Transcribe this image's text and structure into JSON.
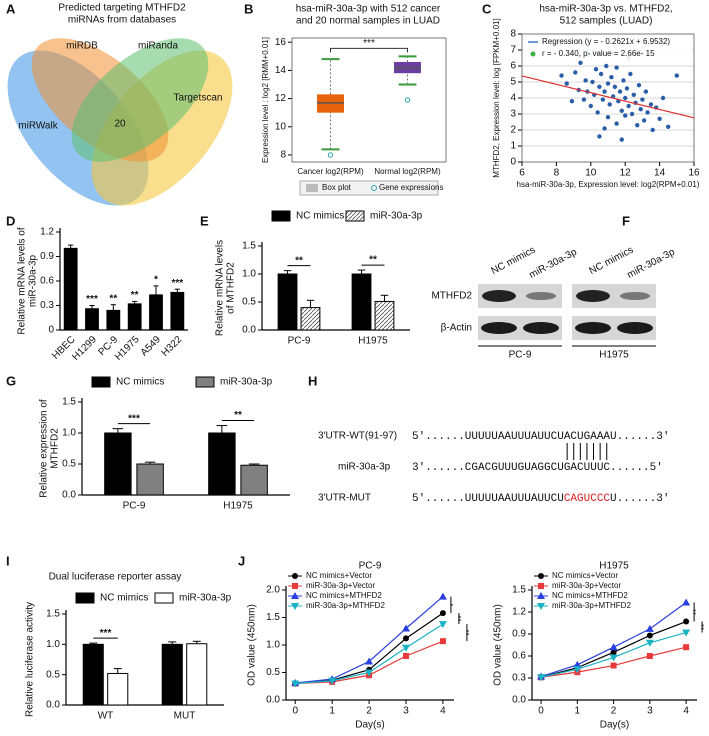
{
  "venn": {
    "panel": "A",
    "title": [
      "Predicted targeting MTHFD2",
      "miRNAs from databases"
    ],
    "sets": [
      "miRDB",
      "miRanda",
      "miRWalk",
      "Targetscan"
    ],
    "center": "20"
  },
  "blot": {
    "panel": "F",
    "lanes": [
      "NC mimics",
      "miR-30a-3p"
    ],
    "proteins": [
      "MTHFD2",
      "β-Actin"
    ],
    "cells": [
      "PC-9",
      "H1975"
    ]
  },
  "sequence": {
    "panel": "H",
    "labels": [
      "3'UTR-WT(91-97)",
      "miR-30a-3p",
      "3'UTR-MUT"
    ],
    "wt": "5'......UUUUUAAUUUAUUCUACUGAAAU......3'",
    "mir": "3'......CGACGUUUGUAGGCUGACUUUC......5'",
    "mut_prefix": "5'......UUUUUAAUUUAUUCU",
    "mut_site": "CAGUCCC",
    "mut_suffix": "U......3'"
  },
  "chart_data": [
    {
      "type": "box",
      "panel": "B",
      "title": [
        "hsa-miR-30a-3p with 512 cancer",
        "and 20 normal samples in LUAD"
      ],
      "ylabel": "Expression level : log2 [RMM+0.01]",
      "categories": [
        "Cancer log2(RPM)",
        "Normal log2(RPM)"
      ],
      "colors": [
        "#e8620c",
        "#6b3fa0"
      ],
      "boxes": [
        {
          "low": 8.4,
          "q1": 11.0,
          "median": 11.7,
          "q3": 12.3,
          "high": 14.8
        },
        {
          "low": 13.0,
          "q1": 13.8,
          "median": 14.2,
          "q3": 14.6,
          "high": 15.0
        }
      ],
      "outliers": [
        8.0,
        11.9
      ],
      "significance": "***",
      "legend": [
        "Box plot",
        "Gene expressions"
      ],
      "ylim": [
        7.5,
        16.3
      ],
      "yticks": [
        8,
        10,
        12,
        14,
        16
      ]
    },
    {
      "type": "scatter",
      "panel": "C",
      "title": [
        "hsa-miR-30a-3p vs. MTHFD2,",
        "512 samples (LUAD)"
      ],
      "xlabel": "hsa-miR-30a-3p, Expression level: log2(RPM+0.01)",
      "ylabel": "MTHFD2, Expression level: log [FPKM+0.01]",
      "color": "#2a5ea8",
      "line_color": "#e03030",
      "x": [
        8.3,
        8.6,
        8.9,
        9.1,
        9.3,
        9.4,
        9.6,
        9.7,
        9.8,
        9.9,
        10.0,
        10.1,
        10.2,
        10.3,
        10.4,
        10.5,
        10.6,
        10.7,
        10.8,
        10.9,
        11.0,
        11.0,
        11.1,
        11.2,
        11.3,
        11.4,
        11.5,
        11.5,
        11.6,
        11.7,
        11.8,
        11.9,
        12.0,
        12.0,
        12.1,
        12.2,
        12.3,
        12.4,
        12.5,
        12.6,
        12.7,
        12.8,
        12.9,
        13.0,
        13.1,
        13.2,
        13.3,
        13.5,
        13.6,
        13.8,
        14.0,
        14.2,
        14.5,
        15.0,
        10.5,
        11.8,
        9.5,
        12.2,
        10.8,
        11.3
      ],
      "y": [
        5.4,
        4.9,
        3.8,
        5.6,
        4.5,
        6.2,
        3.9,
        5.1,
        4.4,
        6.7,
        3.5,
        5.0,
        4.2,
        5.8,
        3.1,
        4.7,
        5.5,
        3.9,
        4.4,
        6.0,
        2.8,
        4.9,
        3.6,
        5.3,
        4.1,
        4.7,
        2.4,
        5.9,
        3.8,
        4.4,
        3.2,
        5.1,
        4.0,
        2.9,
        4.6,
        3.5,
        5.5,
        3.0,
        4.2,
        3.7,
        2.3,
        4.8,
        3.3,
        3.9,
        2.6,
        4.4,
        3.1,
        3.6,
        2.0,
        3.4,
        2.7,
        4.0,
        2.2,
        5.4,
        1.6,
        1.4,
        7.4,
        6.5,
        2.1,
        6.8
      ],
      "regression": {
        "slope": -0.2621,
        "intercept": 6.9532
      },
      "legend": [
        {
          "label": "Regression (y = - 0.2621x + 6.9532)",
          "color": "#3a78c8"
        },
        {
          "label": "r = - 0.340, p- value = 2.66e- 15",
          "color": "#3cb043"
        }
      ],
      "xlim": [
        6,
        16
      ],
      "xticks": [
        6,
        8,
        10,
        12,
        14,
        16
      ],
      "ylim": [
        0,
        8
      ],
      "yticks": [
        0,
        1,
        2,
        3,
        4,
        5,
        6,
        7,
        8
      ],
      "grid": true
    },
    {
      "type": "bar",
      "panel": "D",
      "ylabel": [
        "Relative mRNA levels of",
        "miR-30a-3p"
      ],
      "categories": [
        "HBEC",
        "H1299",
        "PC-9",
        "H1975",
        "A549",
        "H322"
      ],
      "xtick_rotation": -45,
      "values": [
        1.0,
        0.26,
        0.24,
        0.32,
        0.43,
        0.46
      ],
      "errors": [
        0.04,
        0.04,
        0.07,
        0.03,
        0.11,
        0.04
      ],
      "color": "#000000",
      "significance": [
        null,
        "***",
        "**",
        "**",
        "*",
        "***"
      ],
      "ylim": [
        0,
        1.2
      ],
      "yticks": [
        0,
        0.3,
        0.6,
        0.9,
        1.2
      ]
    },
    {
      "type": "bar",
      "panel": "E",
      "ylabel": [
        "Relative mRNA levels",
        "of MTHFD2"
      ],
      "categories": [
        "PC-9",
        "H1975"
      ],
      "series": [
        {
          "name": "NC mimics",
          "color": "#000000",
          "values": [
            1.0,
            1.0
          ],
          "errors": [
            0.06,
            0.07
          ]
        },
        {
          "name": "miR-30a-3p",
          "color": "#999999",
          "pattern": "hatch",
          "values": [
            0.4,
            0.51
          ],
          "errors": [
            0.13,
            0.11
          ]
        }
      ],
      "significance": [
        "**",
        "**"
      ],
      "ylim": [
        0,
        1.5
      ],
      "yticks": [
        {
          "value": 0,
          "label": "0.0"
        },
        0.5,
        {
          "value": 1,
          "label": "1.0"
        },
        1.5
      ]
    },
    {
      "type": "bar",
      "panel": "G",
      "ylabel": [
        "Relative expression of",
        "MTHFD2"
      ],
      "categories": [
        "PC-9",
        "H1975"
      ],
      "series": [
        {
          "name": "NC mimics",
          "color": "#000000",
          "values": [
            1.0,
            1.0
          ],
          "errors": [
            0.07,
            0.12
          ]
        },
        {
          "name": "miR-30a-3p",
          "color": "#808080",
          "values": [
            0.5,
            0.48
          ],
          "errors": [
            0.03,
            0.02
          ]
        }
      ],
      "significance": [
        "***",
        "**"
      ],
      "ylim": [
        0,
        1.5
      ],
      "yticks": [
        {
          "value": 0,
          "label": "0.0"
        },
        0.5,
        {
          "value": 1,
          "label": "1.0"
        },
        1.5
      ]
    },
    {
      "type": "bar",
      "panel": "I",
      "title": "Dual luciferase reporter assay",
      "ylabel": "Relative luciferase activity",
      "categories": [
        "WT",
        "MUT"
      ],
      "series": [
        {
          "name": "NC mimics",
          "color": "#000000",
          "values": [
            1.0,
            1.0
          ],
          "errors": [
            0.02,
            0.04
          ]
        },
        {
          "name": "miR-30a-3p",
          "color": "#ffffff",
          "values": [
            0.52,
            1.01
          ],
          "errors": [
            0.08,
            0.04
          ]
        }
      ],
      "significance": [
        "***",
        null
      ],
      "ylim": [
        0,
        1.5
      ],
      "yticks": [
        {
          "value": 0,
          "label": "0.0"
        },
        0.5,
        {
          "value": 1,
          "label": "1.0"
        },
        1.5
      ]
    },
    {
      "type": "line",
      "panel": "J",
      "title": "PC-9",
      "xlabel": "Day(s)",
      "ylabel": "OD value (450nm)",
      "x": [
        0,
        1,
        2,
        3,
        4
      ],
      "series": [
        {
          "name": "NC mimics+Vector",
          "color": "#000000",
          "marker": "circle",
          "values": [
            0.3,
            0.36,
            0.55,
            1.12,
            1.58
          ]
        },
        {
          "name": "miR-30a-3p+Vector",
          "color": "#e83a3a",
          "marker": "square",
          "values": [
            0.3,
            0.33,
            0.45,
            0.8,
            1.07
          ]
        },
        {
          "name": "NC mimics+MTHFD2",
          "color": "#2a3fe0",
          "marker": "triangle",
          "values": [
            0.31,
            0.38,
            0.7,
            1.3,
            1.88
          ]
        },
        {
          "name": "miR-30a-3p+MTHFD2",
          "color": "#19b3c4",
          "marker": "triangle-down",
          "values": [
            0.3,
            0.35,
            0.5,
            0.95,
            1.38
          ]
        }
      ],
      "significance": [
        "*",
        "**",
        "**"
      ],
      "xlim": [
        -0.25,
        4.3
      ],
      "xticks": [
        0,
        1,
        2,
        3,
        4
      ],
      "ylim": [
        0,
        2.0
      ],
      "yticks": [
        {
          "value": 0,
          "label": "0.0"
        },
        0.5,
        {
          "value": 1,
          "label": "1.0"
        },
        1.5,
        {
          "value": 2,
          "label": "2.0"
        }
      ]
    },
    {
      "type": "line",
      "title": "H1975",
      "xlabel": "Day(s)",
      "ylabel": "OD value (450nm)",
      "x": [
        0,
        1,
        2,
        3,
        4
      ],
      "series": [
        {
          "name": "NC mimics+Vector",
          "color": "#000000",
          "marker": "circle",
          "values": [
            0.31,
            0.44,
            0.65,
            0.88,
            1.07
          ]
        },
        {
          "name": "miR-30a-3p+Vector",
          "color": "#e83a3a",
          "marker": "square",
          "values": [
            0.31,
            0.38,
            0.47,
            0.6,
            0.72
          ]
        },
        {
          "name": "NC mimics+MTHFD2",
          "color": "#2a3fe0",
          "marker": "triangle",
          "values": [
            0.32,
            0.48,
            0.72,
            0.97,
            1.33
          ]
        },
        {
          "name": "miR-30a-3p+MTHFD2",
          "color": "#19b3c4",
          "marker": "triangle-down",
          "values": [
            0.31,
            0.42,
            0.58,
            0.78,
            0.92
          ]
        }
      ],
      "significance": [
        "**",
        "**",
        "**"
      ],
      "xlim": [
        -0.25,
        4.3
      ],
      "xticks": [
        0,
        1,
        2,
        3,
        4
      ],
      "ylim": [
        0,
        1.5
      ],
      "yticks": [
        {
          "value": 0,
          "label": "0.0"
        },
        0.3,
        0.6,
        0.9,
        1.2,
        1.5
      ]
    }
  ]
}
